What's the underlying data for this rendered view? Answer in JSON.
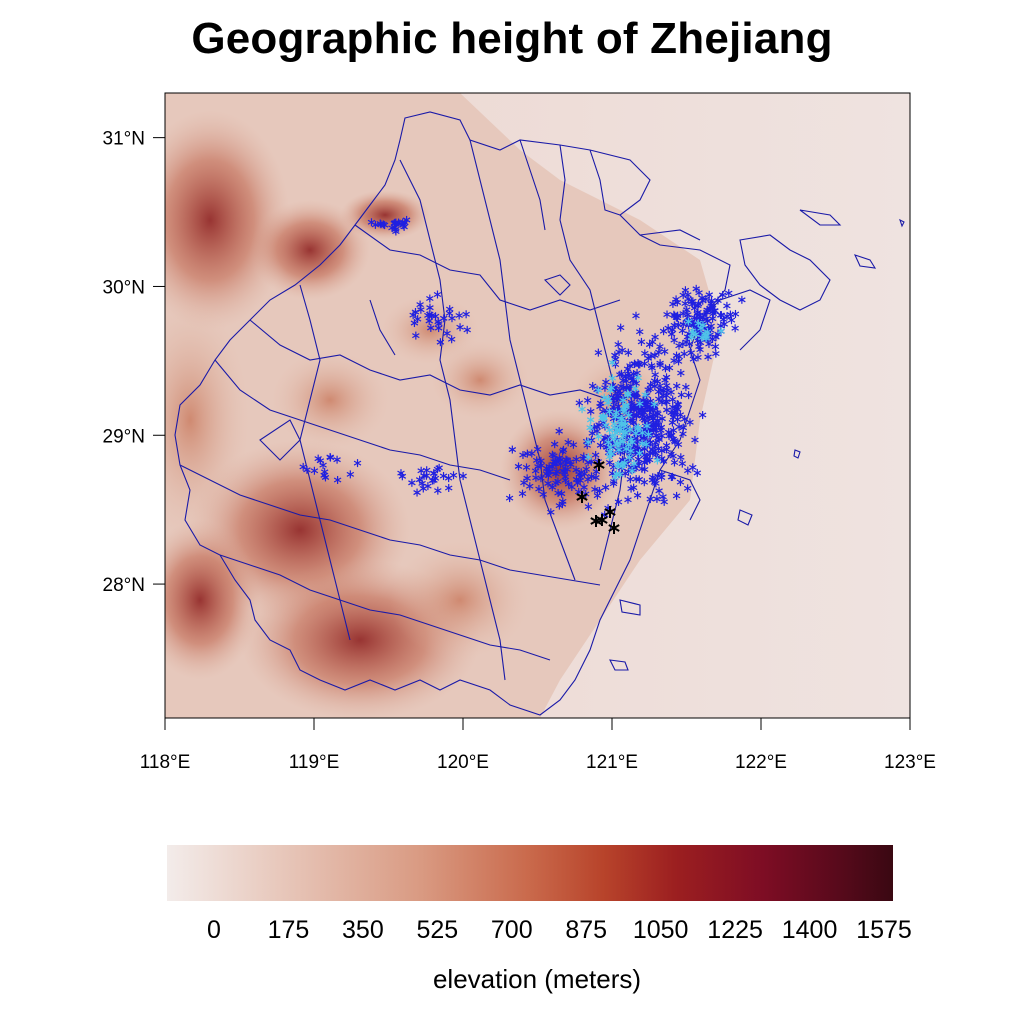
{
  "title": "Geographic height of Zhejiang",
  "map": {
    "lon_range": [
      118,
      123
    ],
    "lat_range": [
      27.1,
      31.3
    ],
    "x_ticks": [
      "118°E",
      "119°E",
      "120°E",
      "121°E",
      "122°E",
      "123°E"
    ],
    "x_tick_values": [
      118,
      119,
      120,
      121,
      122,
      123
    ],
    "y_ticks": [
      "28°N",
      "29°N",
      "30°N",
      "31°N"
    ],
    "y_tick_values": [
      28,
      29,
      30,
      31
    ],
    "boundary_color": "#1a1aa8",
    "station_colors": {
      "low": "#2020e0",
      "mid": "#4fc3e8",
      "high": "#000000"
    }
  },
  "colorbar": {
    "labels": [
      "0",
      "175",
      "350",
      "525",
      "700",
      "875",
      "1050",
      "1225",
      "1400",
      "1575"
    ],
    "title": "elevation (meters)",
    "colors": [
      "#f3ecea",
      "#e8c9bd",
      "#d99a82",
      "#c9694b",
      "#b8442b",
      "#9c1f20",
      "#7e0d24",
      "#5a0a1c",
      "#3a0812"
    ]
  }
}
